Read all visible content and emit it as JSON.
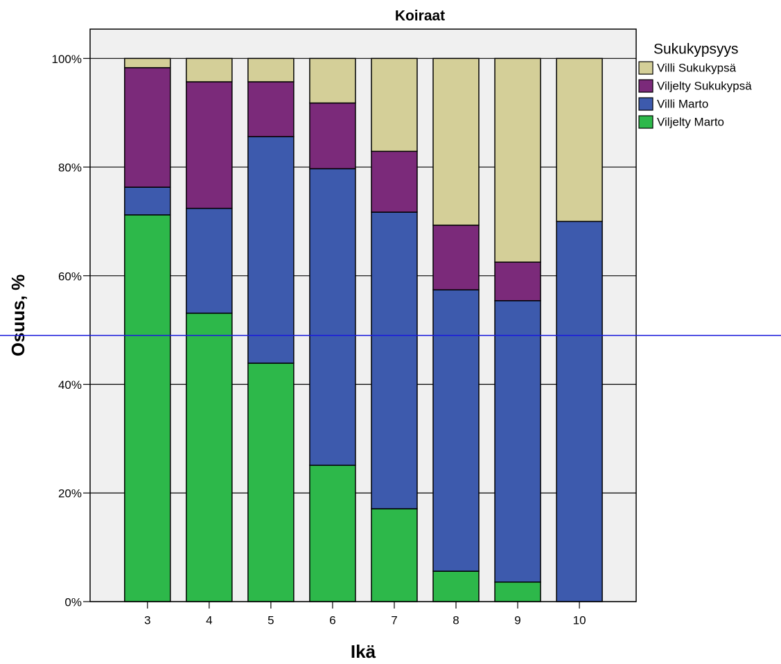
{
  "chart_data": {
    "type": "stacked_bar",
    "title": "Koiraat",
    "x_label": "Ikä",
    "y_label": "Osuus, %",
    "legend_title": "Sukukypsyys",
    "categories": [
      "3",
      "4",
      "5",
      "6",
      "7",
      "8",
      "9",
      "10"
    ],
    "series": [
      {
        "name": "Viljelty Marto",
        "color": "#2db84a",
        "values": [
          71.2,
          53.1,
          43.9,
          25.1,
          17.1,
          5.6,
          3.6,
          0
        ]
      },
      {
        "name": "Villi Marto",
        "color": "#3d5aad",
        "values": [
          5.1,
          19.3,
          41.7,
          54.6,
          54.6,
          51.8,
          51.8,
          70.0
        ]
      },
      {
        "name": "Viljelty Sukukypsä",
        "color": "#7b2a7a",
        "values": [
          22.0,
          23.3,
          10.1,
          12.1,
          11.2,
          11.9,
          7.1,
          0
        ]
      },
      {
        "name": "Villi Sukukypsä",
        "color": "#d4cf98",
        "values": [
          1.7,
          4.3,
          4.3,
          8.2,
          17.1,
          30.7,
          37.5,
          30.0
        ]
      }
    ],
    "ylim": [
      0,
      105.4
    ],
    "yticks": [
      {
        "value": 0,
        "label": "0%"
      },
      {
        "value": 20,
        "label": "20%"
      },
      {
        "value": 40,
        "label": "40%"
      },
      {
        "value": 60,
        "label": "60%"
      },
      {
        "value": 80,
        "label": "80%"
      },
      {
        "value": 100,
        "label": "100%"
      }
    ],
    "grid": true
  }
}
